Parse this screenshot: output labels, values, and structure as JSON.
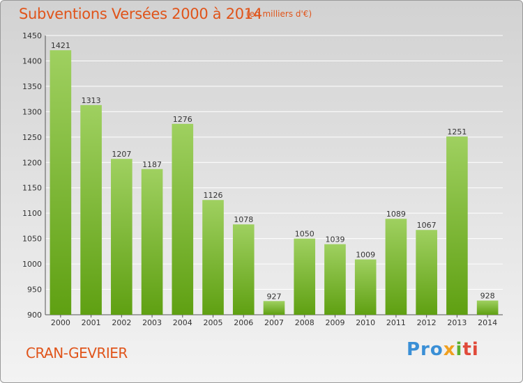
{
  "title": "Subventions Versées 2000 à 2014",
  "subtitle": "(en milliers d'€)",
  "commune": "CRAN-GEVRIER",
  "logo": {
    "p1": "Pro",
    "p2": "x",
    "p3": "i",
    "p4": "ti"
  },
  "colors": {
    "bar_top": "#9fd060",
    "bar_bottom": "#5fa012",
    "title": "#e0541a"
  },
  "chart_data": {
    "type": "bar",
    "title": "Subventions Versées 2000 à 2014",
    "subtitle": "(en milliers d'€)",
    "xlabel": "",
    "ylabel": "",
    "categories": [
      "2000",
      "2001",
      "2002",
      "2003",
      "2004",
      "2005",
      "2006",
      "2007",
      "2008",
      "2009",
      "2010",
      "2011",
      "2012",
      "2013",
      "2014"
    ],
    "values": [
      1421,
      1313,
      1207,
      1187,
      1276,
      1126,
      1078,
      927,
      1050,
      1039,
      1009,
      1089,
      1067,
      1251,
      928
    ],
    "ylim": [
      900,
      1450
    ],
    "yticks": [
      900,
      950,
      1000,
      1050,
      1100,
      1150,
      1200,
      1250,
      1300,
      1350,
      1400,
      1450
    ],
    "grid": true,
    "data_labels": true
  }
}
